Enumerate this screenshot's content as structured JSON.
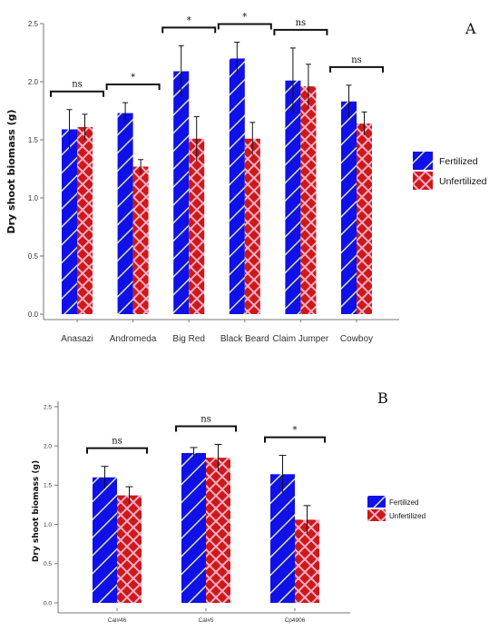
{
  "chart_data": [
    {
      "panel": "A",
      "type": "bar",
      "ylabel": "Dry shoot biomass (g)",
      "xlabel": "",
      "ylim": [
        0,
        2.5
      ],
      "yticks": [
        "0.0",
        "0.5",
        "1.0",
        "1.5",
        "2.0",
        "2.5"
      ],
      "categories": [
        "Anasazi",
        "Andromeda",
        "Big Red",
        "Black Beard",
        "Claim Jumper",
        "Cowboy"
      ],
      "series": [
        {
          "name": "Fertilized",
          "color": "#1010e8",
          "values": [
            1.59,
            1.73,
            2.09,
            2.2,
            2.01,
            1.83
          ],
          "errors": [
            0.17,
            0.09,
            0.22,
            0.14,
            0.28,
            0.14
          ]
        },
        {
          "name": "Unfertilized",
          "color": "#d01818",
          "values": [
            1.61,
            1.27,
            1.51,
            1.51,
            1.96,
            1.64
          ],
          "errors": [
            0.11,
            0.06,
            0.19,
            0.14,
            0.19,
            0.1
          ]
        }
      ],
      "significance": [
        "ns",
        "*",
        "*",
        "*",
        "ns",
        "ns"
      ],
      "legend": "right",
      "grid": false
    },
    {
      "panel": "B",
      "type": "bar",
      "ylabel": "Dry shoot biomass (g)",
      "xlabel": "",
      "ylim": [
        0,
        2.5
      ],
      "yticks": [
        "0.0",
        "0.5",
        "1.0",
        "1.5",
        "2.0",
        "2.5"
      ],
      "categories": [
        "Cal#46",
        "Cal#5",
        "Cp4906"
      ],
      "series": [
        {
          "name": "Fertilized",
          "color": "#1010e8",
          "values": [
            1.6,
            1.91,
            1.64
          ],
          "errors": [
            0.14,
            0.07,
            0.24
          ]
        },
        {
          "name": "Unfertilized",
          "color": "#d01818",
          "values": [
            1.37,
            1.85,
            1.06
          ],
          "errors": [
            0.11,
            0.17,
            0.18
          ]
        }
      ],
      "significance": [
        "ns",
        "ns",
        "*"
      ],
      "legend": "right",
      "grid": false
    }
  ]
}
